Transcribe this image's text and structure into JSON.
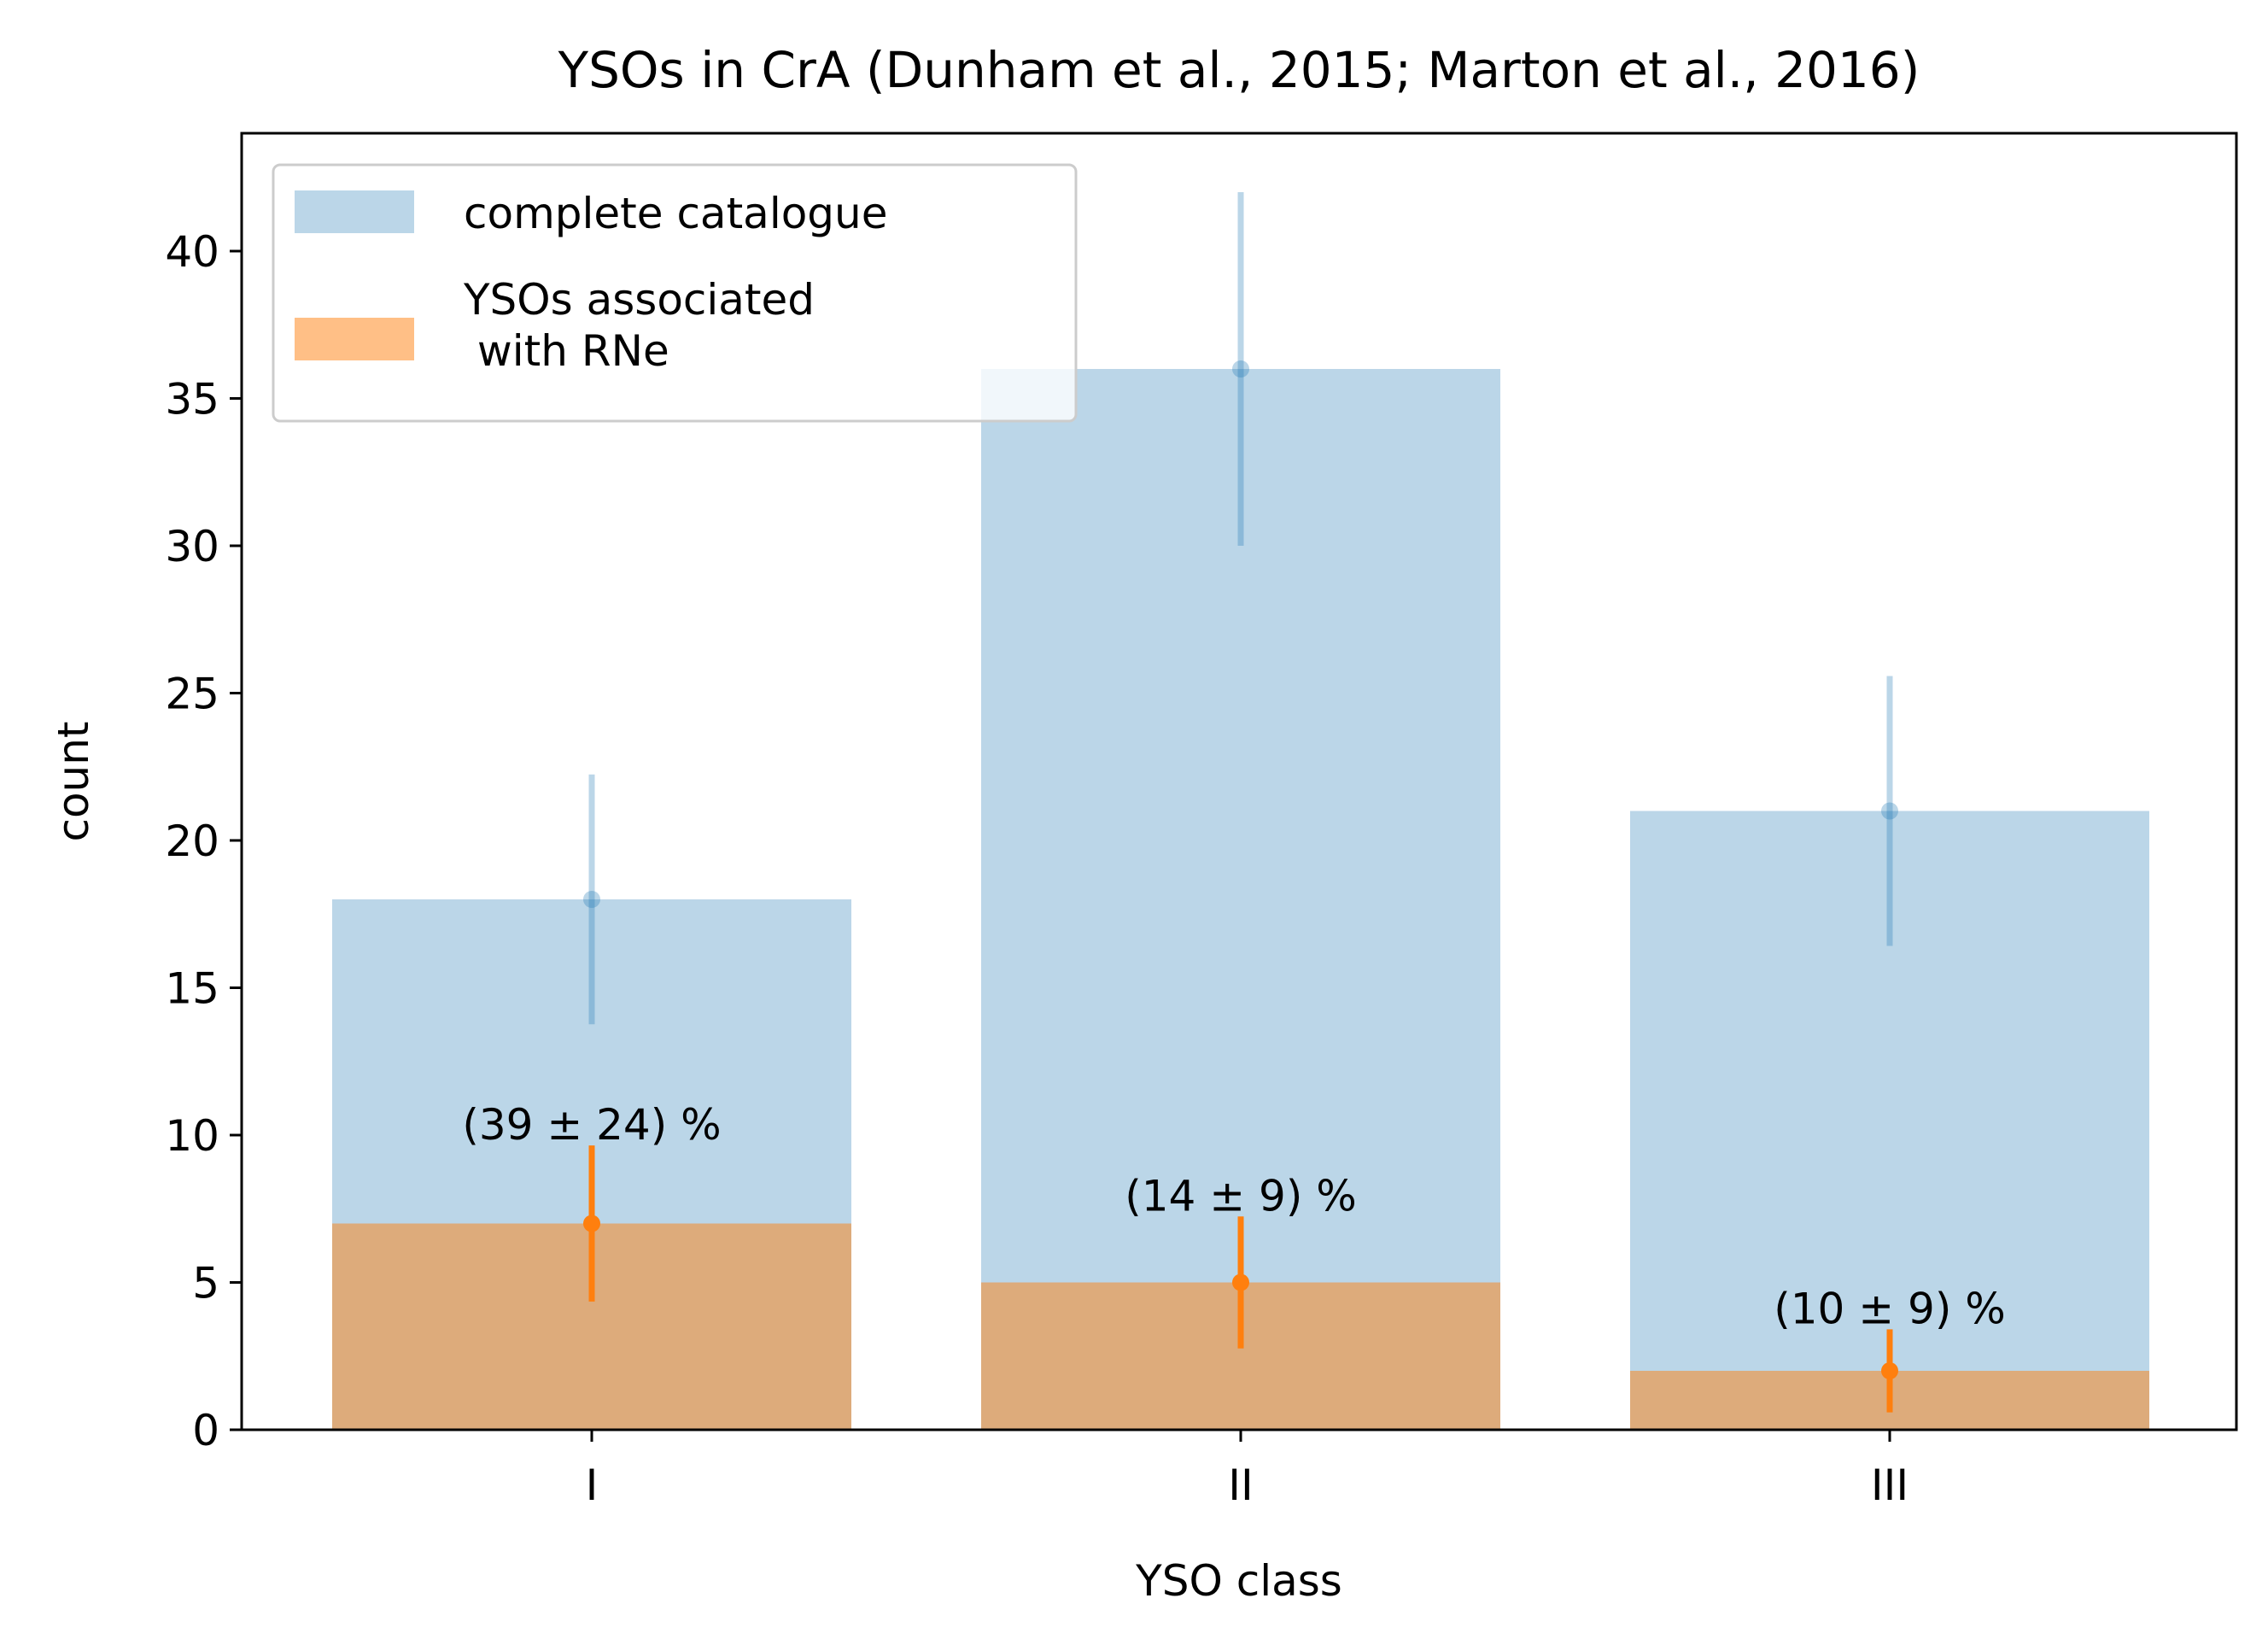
{
  "chart_data": {
    "type": "bar",
    "title": "YSOs in CrA (Dunham et al., 2015; Marton et al., 2016)",
    "xlabel": "YSO class",
    "ylabel": "count",
    "categories": [
      "I",
      "II",
      "III"
    ],
    "ylim": [
      0,
      44
    ],
    "yticks": [
      0,
      5,
      10,
      15,
      20,
      25,
      30,
      35,
      40
    ],
    "grid": false,
    "legend_position": "top-left",
    "series": [
      {
        "name": "complete catalogue",
        "values": [
          18,
          36,
          21
        ],
        "errors": [
          4.24,
          6,
          4.58
        ],
        "color": "#1f77b4",
        "opacity": 0.3
      },
      {
        "name": "YSOs associated\n with RNe",
        "values": [
          7,
          5,
          2
        ],
        "errors": [
          2.65,
          2.24,
          1.41
        ],
        "color": "#ff7f0e",
        "opacity": 0.5
      }
    ],
    "annotations": [
      "(39 ± 24) %",
      "(14 ± 9) %",
      "(10 ± 9) %"
    ]
  }
}
